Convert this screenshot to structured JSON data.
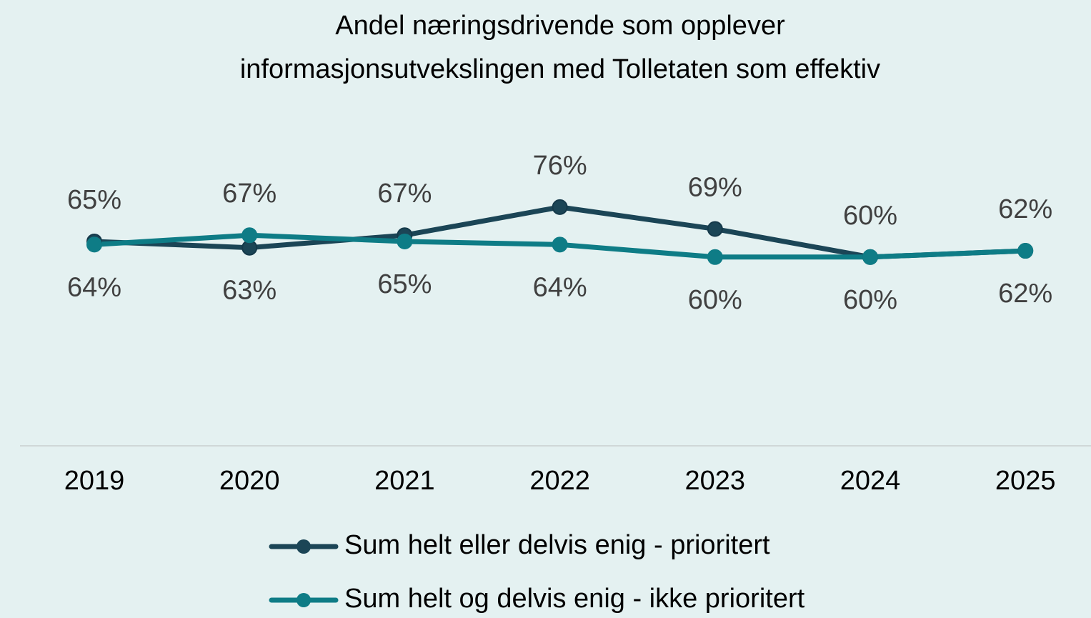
{
  "chart_data": {
    "type": "line",
    "title": "Andel næringsdrivende som opplever informasjonsutvekslingen med Tolletaten som effektiv",
    "categories": [
      "2019",
      "2020",
      "2021",
      "2022",
      "2023",
      "2024",
      "2025"
    ],
    "series": [
      {
        "name": "Sum helt eller delvis enig - prioritert",
        "color": "#1b4556",
        "values": [
          65,
          63,
          67,
          76,
          69,
          60,
          62
        ],
        "value_labels": [
          "65%",
          "63%",
          "67%",
          "76%",
          "69%",
          "60%",
          "62%"
        ]
      },
      {
        "name": "Sum helt og delvis enig - ikke prioritert",
        "color": "#0e7c86",
        "values": [
          64,
          67,
          65,
          64,
          60,
          60,
          62
        ],
        "value_labels": [
          "64%",
          "67%",
          "65%",
          "64%",
          "60%",
          "60%",
          "62%"
        ]
      }
    ],
    "ylim": [
      0,
      100
    ]
  }
}
